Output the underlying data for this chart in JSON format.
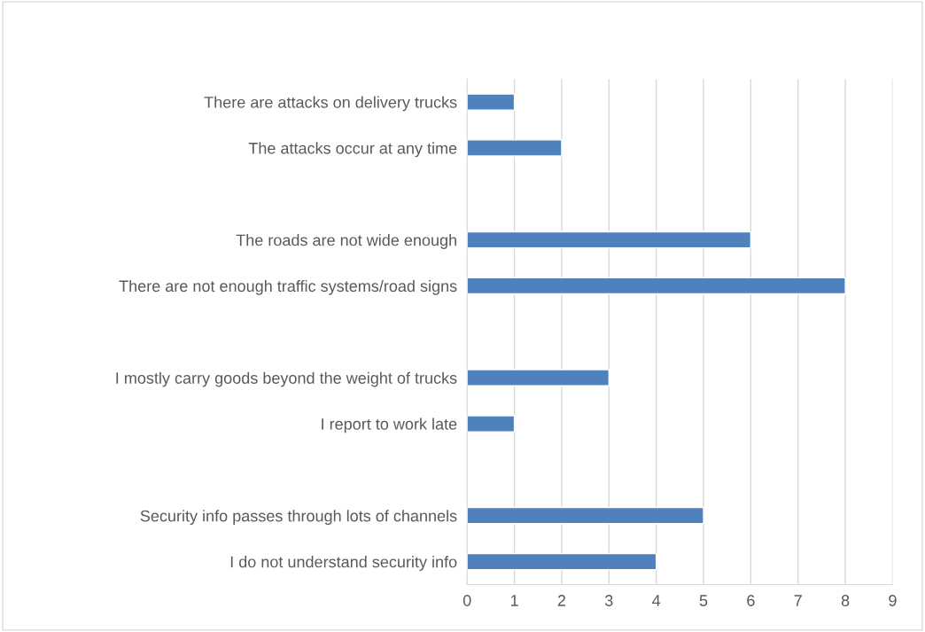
{
  "chart_data": {
    "type": "bar",
    "orientation": "horizontal",
    "categories": [
      "There are attacks on delivery trucks",
      "The attacks occur at any time",
      null,
      "The roads are not wide enough",
      "There are not enough traffic systems/road signs",
      null,
      "I mostly carry goods beyond the weight of trucks",
      "I report to work late",
      null,
      "Security info passes through lots of channels",
      "I do not understand security info"
    ],
    "values": [
      1,
      2,
      null,
      6,
      8,
      null,
      3,
      1,
      null,
      5,
      4
    ],
    "color": "#4f81bd",
    "xlim": [
      0,
      9
    ],
    "xticks": [
      0,
      1,
      2,
      3,
      4,
      5,
      6,
      7,
      8,
      9
    ],
    "grid": "x"
  }
}
